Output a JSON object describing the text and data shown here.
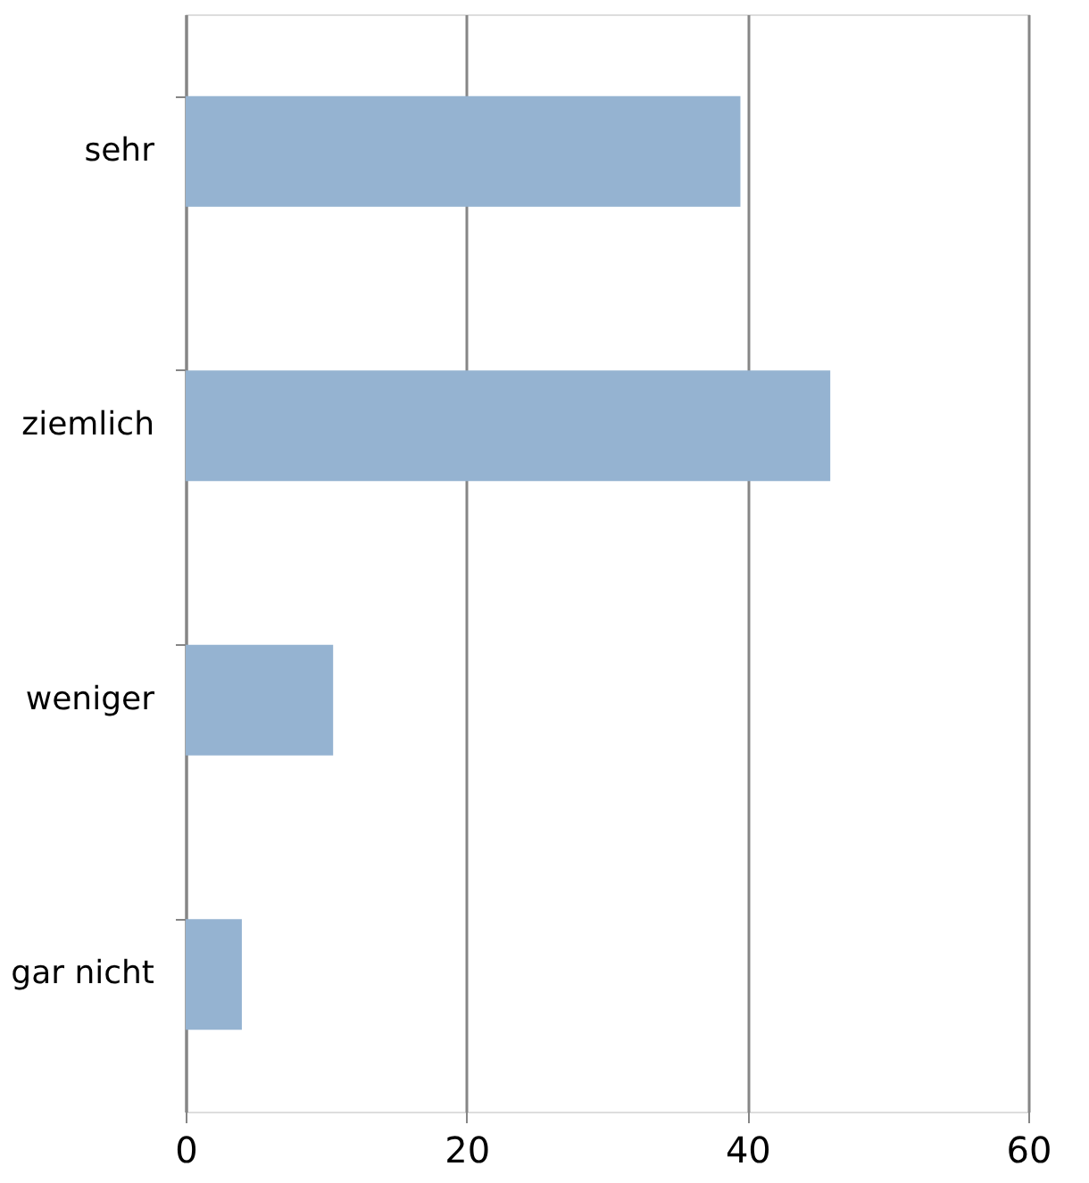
{
  "chart_data": {
    "type": "bar",
    "orientation": "horizontal",
    "categories": [
      "sehr",
      "ziemlich",
      "weniger",
      "gar nicht"
    ],
    "values": [
      39.5,
      45.9,
      10.5,
      4.0
    ],
    "color": "#95b3d1",
    "xlim": [
      0,
      60
    ],
    "xticks": [
      0,
      20,
      40,
      60
    ],
    "grid": "x"
  }
}
